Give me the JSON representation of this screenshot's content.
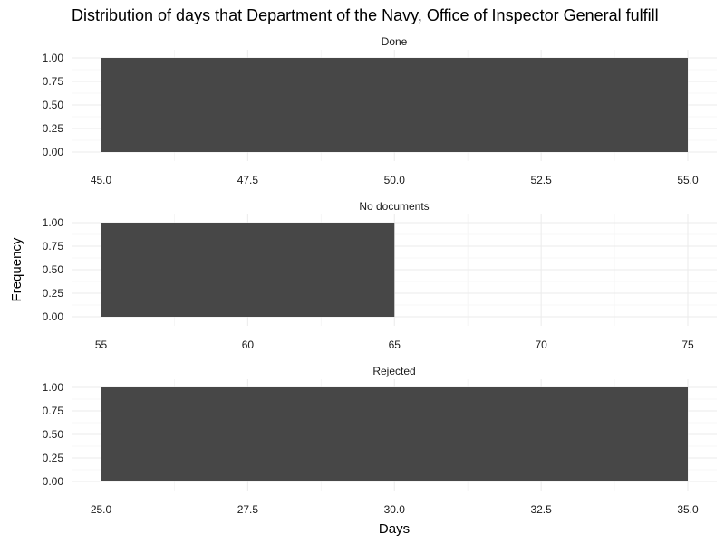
{
  "chart_data": {
    "type": "bar",
    "title": "Distribution of days that Department of the Navy, Office of Inspector General fulfill",
    "xlabel": "Days",
    "ylabel": "Frequency",
    "bar_color": "#474747",
    "grid": true,
    "panels": [
      {
        "name": "Done",
        "xlim": [
          45,
          55
        ],
        "ylim": [
          0,
          1
        ],
        "x_ticks": [
          45,
          47.5,
          50,
          52.5,
          55
        ],
        "x_tick_labels": [
          "45.0",
          "47.5",
          "50.0",
          "52.5",
          "55.0"
        ],
        "y_ticks": [
          0,
          0.25,
          0.5,
          0.75,
          1
        ],
        "y_tick_labels": [
          "0.00",
          "0.25",
          "0.50",
          "0.75",
          "1.00"
        ],
        "bars": [
          {
            "x0": 45,
            "x1": 55,
            "count": 1
          }
        ]
      },
      {
        "name": "No documents",
        "xlim": [
          55,
          75
        ],
        "ylim": [
          0,
          1
        ],
        "x_ticks": [
          55,
          60,
          65,
          70,
          75
        ],
        "x_tick_labels": [
          "55",
          "60",
          "65",
          "70",
          "75"
        ],
        "y_ticks": [
          0,
          0.25,
          0.5,
          0.75,
          1
        ],
        "y_tick_labels": [
          "0.00",
          "0.25",
          "0.50",
          "0.75",
          "1.00"
        ],
        "bars": [
          {
            "x0": 55,
            "x1": 65,
            "count": 1
          }
        ]
      },
      {
        "name": "Rejected",
        "xlim": [
          25,
          35
        ],
        "ylim": [
          0,
          1
        ],
        "x_ticks": [
          25,
          27.5,
          30,
          32.5,
          35
        ],
        "x_tick_labels": [
          "25.0",
          "27.5",
          "30.0",
          "32.5",
          "35.0"
        ],
        "y_ticks": [
          0,
          0.25,
          0.5,
          0.75,
          1
        ],
        "y_tick_labels": [
          "0.00",
          "0.25",
          "0.50",
          "0.75",
          "1.00"
        ],
        "bars": [
          {
            "x0": 25,
            "x1": 35,
            "count": 1
          }
        ]
      }
    ]
  }
}
